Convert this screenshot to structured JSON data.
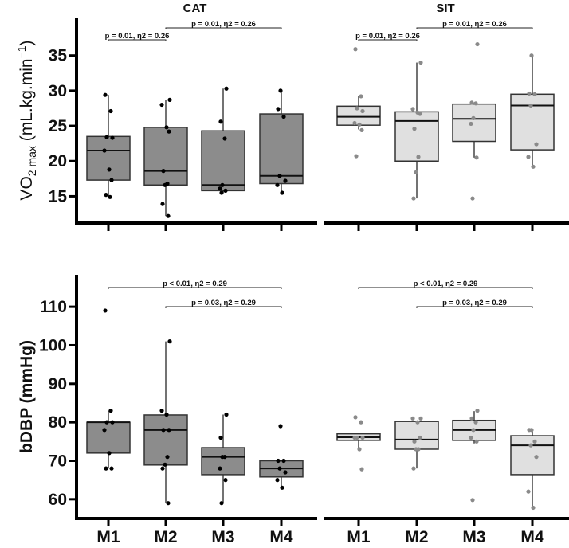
{
  "chart_data": [
    {
      "type": "box",
      "ylabel": {
        "main": "VO",
        "sub": "2 max",
        "rest": " (mL.kg.min",
        "sup": "−1",
        "close": ")"
      },
      "ylim": [
        11.2,
        40.4
      ],
      "yticks": [
        15,
        20,
        25,
        30,
        35
      ],
      "categories": [
        "M1",
        "M2",
        "M3",
        "M4"
      ],
      "panels": [
        {
          "title": "CAT",
          "box_color": "#8c8c8c",
          "point_color": "#000000",
          "boxes": [
            {
              "q1": 17.3,
              "median": 21.5,
              "q3": 23.5,
              "whisker_low": 15.0,
              "whisker_high": 29.4,
              "points": [
                29.4,
                27.1,
                23.4,
                23.3,
                21.5,
                18.8,
                17.3,
                15.2,
                14.9
              ]
            },
            {
              "q1": 16.6,
              "median": 18.6,
              "q3": 24.8,
              "whisker_low": 12.2,
              "whisker_high": 28.7,
              "points": [
                28.7,
                28.0,
                24.8,
                24.2,
                18.6,
                16.8,
                16.6,
                13.9,
                12.2
              ]
            },
            {
              "q1": 15.8,
              "median": 16.6,
              "q3": 24.3,
              "whisker_low": 15.5,
              "whisker_high": 30.3,
              "points": [
                30.3,
                25.6,
                23.2,
                16.6,
                16.1,
                15.8,
                15.5
              ]
            },
            {
              "q1": 16.8,
              "median": 17.9,
              "q3": 26.7,
              "whisker_low": 15.5,
              "whisker_high": 30.0,
              "points": [
                30.0,
                27.4,
                26.3,
                17.9,
                17.2,
                16.6,
                15.5
              ]
            }
          ],
          "annotations": [
            {
              "from": "M1",
              "to": "M2",
              "text": "p = 0.01, η2 = 0.26",
              "level": 1
            },
            {
              "from": "M2",
              "to": "M4",
              "text": "p = 0.01, η2 = 0.26",
              "level": 2
            }
          ]
        },
        {
          "title": "SIT",
          "box_color": "#e0e0e0",
          "point_color": "#8a8a8a",
          "boxes": [
            {
              "q1": 25.1,
              "median": 26.3,
              "q3": 27.8,
              "whisker_low": 24.5,
              "whisker_high": 29.2,
              "points": [
                35.9,
                29.2,
                27.5,
                27.1,
                25.4,
                25.2,
                24.4,
                20.7
              ]
            },
            {
              "q1": 20.0,
              "median": 25.7,
              "q3": 27.0,
              "whisker_low": 14.7,
              "whisker_high": 34.0,
              "points": [
                34.0,
                27.4,
                26.9,
                26.7,
                24.6,
                20.6,
                18.4,
                14.7
              ]
            },
            {
              "q1": 22.8,
              "median": 26.0,
              "q3": 28.1,
              "whisker_low": 20.5,
              "whisker_high": 28.3,
              "points": [
                36.6,
                28.3,
                28.2,
                26.1,
                25.3,
                20.5,
                14.7
              ]
            },
            {
              "q1": 21.6,
              "median": 27.9,
              "q3": 29.5,
              "whisker_low": 19.2,
              "whisker_high": 35.0,
              "points": [
                35.0,
                29.6,
                29.5,
                27.9,
                22.4,
                20.6,
                19.2
              ]
            }
          ],
          "annotations": [
            {
              "from": "M1",
              "to": "M2",
              "text": "p = 0.01, η2 = 0.26",
              "level": 1
            },
            {
              "from": "M2",
              "to": "M4",
              "text": "p = 0.01, η2 = 0.26",
              "level": 2
            }
          ]
        }
      ]
    },
    {
      "type": "box",
      "ylabel": {
        "main": "bDBP (mmHg)"
      },
      "ylim": [
        55,
        118.3
      ],
      "yticks": [
        60,
        70,
        80,
        90,
        100,
        110
      ],
      "categories": [
        "M1",
        "M2",
        "M3",
        "M4"
      ],
      "panels": [
        {
          "title": "",
          "box_color": "#8c8c8c",
          "point_color": "#000000",
          "boxes": [
            {
              "q1": 72.0,
              "median": 80.0,
              "q3": 80.0,
              "whisker_low": 68,
              "whisker_high": 83,
              "points": [
                109,
                83,
                80,
                80,
                78,
                72,
                68,
                68
              ]
            },
            {
              "q1": 68.9,
              "median": 78.0,
              "q3": 81.9,
              "whisker_low": 59,
              "whisker_high": 101,
              "points": [
                101,
                83,
                82,
                78,
                78,
                71,
                69,
                68,
                59
              ]
            },
            {
              "q1": 66.4,
              "median": 71.0,
              "q3": 73.4,
              "whisker_low": 59,
              "whisker_high": 82,
              "points": [
                82,
                76,
                71,
                71,
                68,
                65,
                59
              ]
            },
            {
              "q1": 65.8,
              "median": 68.0,
              "q3": 70.0,
              "whisker_low": 63,
              "whisker_high": 70,
              "points": [
                79,
                70,
                70,
                68,
                67,
                65,
                63
              ]
            }
          ],
          "annotations": [
            {
              "from": "M1",
              "to": "M4",
              "text": "p < 0.01, η2 = 0.29",
              "level": 2
            },
            {
              "from": "M2",
              "to": "M4",
              "text": "p = 0.03, η2 = 0.29",
              "level": 1
            }
          ]
        },
        {
          "title": "",
          "box_color": "#e0e0e0",
          "point_color": "#8a8a8a",
          "boxes": [
            {
              "q1": 75.3,
              "median": 76.1,
              "q3": 77.0,
              "whisker_low": 73,
              "whisker_high": 77,
              "points": [
                81.3,
                80,
                76,
                76,
                76,
                73,
                67.8
              ]
            },
            {
              "q1": 73.0,
              "median": 75.5,
              "q3": 80.2,
              "whisker_low": 68,
              "whisker_high": 80.2,
              "points": [
                81,
                81,
                80,
                76,
                75,
                73,
                73,
                68
              ]
            },
            {
              "q1": 75.3,
              "median": 78.0,
              "q3": 80.5,
              "whisker_low": 74.5,
              "whisker_high": 82.9,
              "points": [
                83,
                81,
                80,
                78,
                76,
                75,
                59.8
              ]
            },
            {
              "q1": 66.4,
              "median": 74.0,
              "q3": 76.5,
              "whisker_low": 57.8,
              "whisker_high": 78,
              "points": [
                78,
                78,
                75,
                74,
                71,
                62,
                57.8
              ]
            }
          ],
          "annotations": [
            {
              "from": "M1",
              "to": "M4",
              "text": "p < 0.01, η2 = 0.29",
              "level": 2
            },
            {
              "from": "M2",
              "to": "M4",
              "text": "p = 0.03, η2 = 0.29",
              "level": 1
            }
          ]
        }
      ]
    }
  ]
}
